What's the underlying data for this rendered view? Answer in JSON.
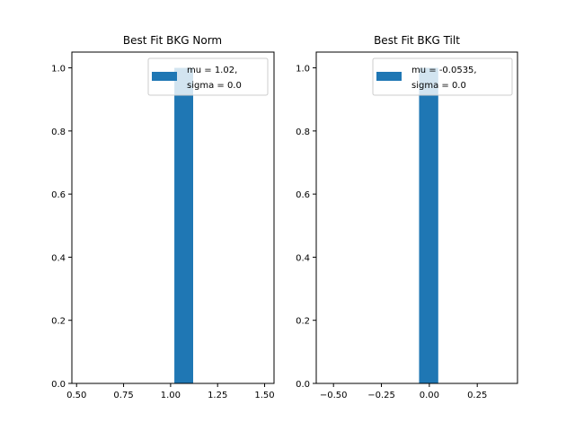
{
  "chart_data": [
    {
      "type": "bar",
      "title": "Best Fit BKG Norm",
      "xlabel": "",
      "ylabel": "",
      "xlim": [
        0.475,
        1.55
      ],
      "ylim": [
        0,
        1.05
      ],
      "xticks": [
        0.5,
        0.75,
        1.0,
        1.25,
        1.5
      ],
      "xtick_labels": [
        "0.50",
        "0.75",
        "1.00",
        "1.25",
        "1.50"
      ],
      "yticks": [
        0,
        0.2,
        0.4,
        0.6,
        0.8,
        1.0
      ],
      "ytick_labels": [
        "0.0",
        "0.2",
        "0.4",
        "0.6",
        "0.8",
        "1.0"
      ],
      "series": [
        {
          "name": "mu = 1.02,\nsigma = 0.0",
          "name_lines": [
            "mu = 1.02,",
            "sigma = 0.0"
          ],
          "color": "#1f77b4",
          "bins": [
            {
              "x0": 1.02,
              "x1": 1.12,
              "value": 1.0
            }
          ]
        }
      ],
      "legend": "top-right",
      "grid": false
    },
    {
      "type": "bar",
      "title": "Best Fit BKG Tilt",
      "xlabel": "",
      "ylabel": "",
      "xlim": [
        -0.59,
        0.46
      ],
      "ylim": [
        0,
        1.05
      ],
      "xticks": [
        -0.5,
        -0.25,
        0.0,
        0.25
      ],
      "xtick_labels": [
        "−0.50",
        "−0.25",
        "0.00",
        "0.25"
      ],
      "yticks": [
        0,
        0.2,
        0.4,
        0.6,
        0.8,
        1.0
      ],
      "ytick_labels": [
        "0.0",
        "0.2",
        "0.4",
        "0.6",
        "0.8",
        "1.0"
      ],
      "series": [
        {
          "name": "mu = -0.0535,\nsigma = 0.0",
          "name_lines": [
            "mu = -0.0535,",
            "sigma = 0.0"
          ],
          "color": "#1f77b4",
          "bins": [
            {
              "x0": -0.0535,
              "x1": 0.0465,
              "value": 1.0
            }
          ]
        }
      ],
      "legend": "top-right",
      "grid": false
    }
  ]
}
